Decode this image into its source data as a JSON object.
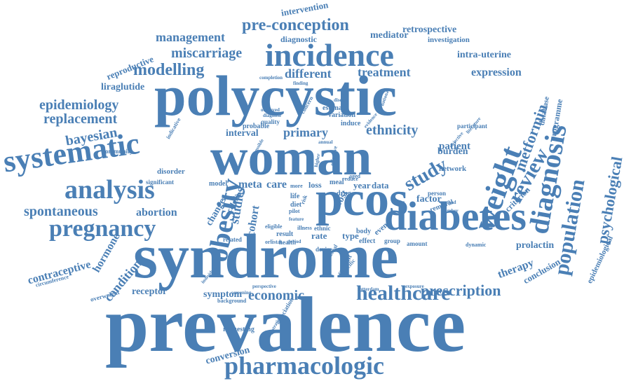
{
  "word_cloud": {
    "color": "#4a7fb5",
    "words": [
      {
        "text": "prevalence",
        "weight": 100
      },
      {
        "text": "syndrome",
        "weight": 95
      },
      {
        "text": "polycystic",
        "weight": 90
      },
      {
        "text": "woman",
        "weight": 85
      },
      {
        "text": "pcos",
        "weight": 80
      },
      {
        "text": "diabetes",
        "weight": 70
      },
      {
        "text": "incidence",
        "weight": 65
      },
      {
        "text": "pharmacologic",
        "weight": 55
      },
      {
        "text": "systematic",
        "weight": 55
      },
      {
        "text": "analysis",
        "weight": 52
      },
      {
        "text": "obesity",
        "weight": 52
      },
      {
        "text": "pregnancy",
        "weight": 48
      },
      {
        "text": "diagnosis",
        "weight": 48
      },
      {
        "text": "population",
        "weight": 45
      },
      {
        "text": "healthcare",
        "weight": 42
      },
      {
        "text": "weight",
        "weight": 45
      },
      {
        "text": "study",
        "weight": 42
      },
      {
        "text": "review",
        "weight": 40
      },
      {
        "text": "pre-conception",
        "weight": 38
      },
      {
        "text": "modelling",
        "weight": 38
      },
      {
        "text": "prescription",
        "weight": 35
      },
      {
        "text": "economic",
        "weight": 32
      },
      {
        "text": "ethnicity",
        "weight": 30
      },
      {
        "text": "epidemiology",
        "weight": 28
      },
      {
        "text": "bayesian",
        "weight": 28
      },
      {
        "text": "spontaneous",
        "weight": 27
      },
      {
        "text": "miscarriage",
        "weight": 27
      },
      {
        "text": "management",
        "weight": 25
      },
      {
        "text": "replacement",
        "weight": 25
      },
      {
        "text": "psychological",
        "weight": 25
      },
      {
        "text": "metformin",
        "weight": 24
      },
      {
        "text": "treatment",
        "weight": 24
      },
      {
        "text": "different",
        "weight": 24
      },
      {
        "text": "expression",
        "weight": 22
      },
      {
        "text": "contraceptive",
        "weight": 22
      },
      {
        "text": "condition",
        "weight": 22
      },
      {
        "text": "hormone",
        "weight": 20
      },
      {
        "text": "therapy",
        "weight": 20
      },
      {
        "text": "primary",
        "weight": 22
      },
      {
        "text": "patient",
        "weight": 20
      },
      {
        "text": "abortion",
        "weight": 18
      },
      {
        "text": "prolactin",
        "weight": 18
      },
      {
        "text": "liraglutide",
        "weight": 18
      },
      {
        "text": "receptor",
        "weight": 17
      },
      {
        "text": "symptom",
        "weight": 17
      },
      {
        "text": "studies",
        "weight": 20
      },
      {
        "text": "cohort",
        "weight": 18
      },
      {
        "text": "change",
        "weight": 17
      },
      {
        "text": "meta",
        "weight": 18
      },
      {
        "text": "care",
        "weight": 18
      },
      {
        "text": "burden",
        "weight": 16
      },
      {
        "text": "factor",
        "weight": 16
      },
      {
        "text": "intra-uterine",
        "weight": 16
      },
      {
        "text": "retrospective",
        "weight": 15
      },
      {
        "text": "mediator",
        "weight": 15
      },
      {
        "text": "conversion",
        "weight": 15
      },
      {
        "text": "reproductive",
        "weight": 14
      },
      {
        "text": "intervention",
        "weight": 14
      },
      {
        "text": "interval",
        "weight": 14
      },
      {
        "text": "criterion",
        "weight": 14
      },
      {
        "text": "conclusion",
        "weight": 14
      },
      {
        "text": "programme",
        "weight": 14
      },
      {
        "text": "database",
        "weight": 13
      },
      {
        "text": "epidemiological",
        "weight": 12
      },
      {
        "text": "diagnostic",
        "weight": 12
      },
      {
        "text": "investigation",
        "weight": 12
      },
      {
        "text": "rate",
        "weight": 14
      },
      {
        "text": "type",
        "weight": 14
      },
      {
        "text": "year",
        "weight": 14
      },
      {
        "text": "data",
        "weight": 14
      },
      {
        "text": "loss",
        "weight": 12
      },
      {
        "text": "cost",
        "weight": 14
      },
      {
        "text": "network",
        "weight": 12
      },
      {
        "text": "removal",
        "weight": 12
      },
      {
        "text": "event",
        "weight": 12
      },
      {
        "text": "body",
        "weight": 12
      },
      {
        "text": "effect",
        "weight": 12
      },
      {
        "text": "result",
        "weight": 11
      },
      {
        "text": "health",
        "weight": 10
      },
      {
        "text": "model",
        "weight": 11
      },
      {
        "text": "related",
        "weight": 10
      },
      {
        "text": "amount",
        "weight": 10
      },
      {
        "text": "group",
        "weight": 10
      },
      {
        "text": "meal",
        "weight": 10
      },
      {
        "text": "person",
        "weight": 10
      },
      {
        "text": "participant",
        "weight": 10
      },
      {
        "text": "estimate",
        "weight": 10
      },
      {
        "text": "variation",
        "weight": 10
      },
      {
        "text": "induce",
        "weight": 10
      },
      {
        "text": "probable",
        "weight": 10
      },
      {
        "text": "quality",
        "weight": 9
      },
      {
        "text": "disorder",
        "weight": 10
      },
      {
        "text": "significant",
        "weight": 9
      },
      {
        "text": "community",
        "weight": 9
      },
      {
        "text": "indicative",
        "weight": 9
      },
      {
        "text": "overweight",
        "weight": 10
      },
      {
        "text": "circumference",
        "weight": 9
      },
      {
        "text": "requesting",
        "weight": 10
      },
      {
        "text": "background",
        "weight": 8
      },
      {
        "text": "screening",
        "weight": 8
      },
      {
        "text": "perspective",
        "weight": 8
      },
      {
        "text": "individual",
        "weight": 8
      },
      {
        "text": "calorie",
        "weight": 10
      },
      {
        "text": "eligible",
        "weight": 9
      },
      {
        "text": "orlistat",
        "weight": 8
      },
      {
        "text": "device",
        "weight": 10
      },
      {
        "text": "ethnic",
        "weight": 9
      },
      {
        "text": "illness",
        "weight": 8
      },
      {
        "text": "gestational",
        "weight": 8
      },
      {
        "text": "current",
        "weight": 10
      },
      {
        "text": "specific",
        "weight": 8
      },
      {
        "text": "rotterdam",
        "weight": 8
      },
      {
        "text": "exposure",
        "weight": 8
      },
      {
        "text": "registration",
        "weight": 8
      },
      {
        "text": "association",
        "weight": 9
      },
      {
        "text": "dynamic",
        "weight": 8
      },
      {
        "text": "number",
        "weight": 8
      },
      {
        "text": "method",
        "weight": 8
      },
      {
        "text": "literature",
        "weight": 8
      },
      {
        "text": "objective",
        "weight": 8
      },
      {
        "text": "effective",
        "weight": 8
      },
      {
        "text": "higher",
        "weight": 8
      },
      {
        "text": "life",
        "weight": 10
      },
      {
        "text": "diet",
        "weight": 10
      },
      {
        "text": "drug",
        "weight": 10
      },
      {
        "text": "pilot",
        "weight": 8
      },
      {
        "text": "reduce",
        "weight": 8
      },
      {
        "text": "aged",
        "weight": 8
      },
      {
        "text": "general",
        "weight": 8
      },
      {
        "text": "more",
        "weight": 8
      },
      {
        "text": "completion",
        "weight": 8
      },
      {
        "text": "finding",
        "weight": 8
      },
      {
        "text": "observed",
        "weight": 8
      },
      {
        "text": "diagnose",
        "weight": 8
      },
      {
        "text": "concern",
        "weight": 8
      },
      {
        "text": "national",
        "weight": 8
      },
      {
        "text": "evidence",
        "weight": 8
      },
      {
        "text": "annual",
        "weight": 8
      },
      {
        "text": "disease",
        "weight": 8
      },
      {
        "text": "possible",
        "weight": 8
      },
      {
        "text": "risk",
        "weight": 8
      },
      {
        "text": "period",
        "weight": 8
      },
      {
        "text": "feature",
        "weight": 8
      }
    ]
  }
}
